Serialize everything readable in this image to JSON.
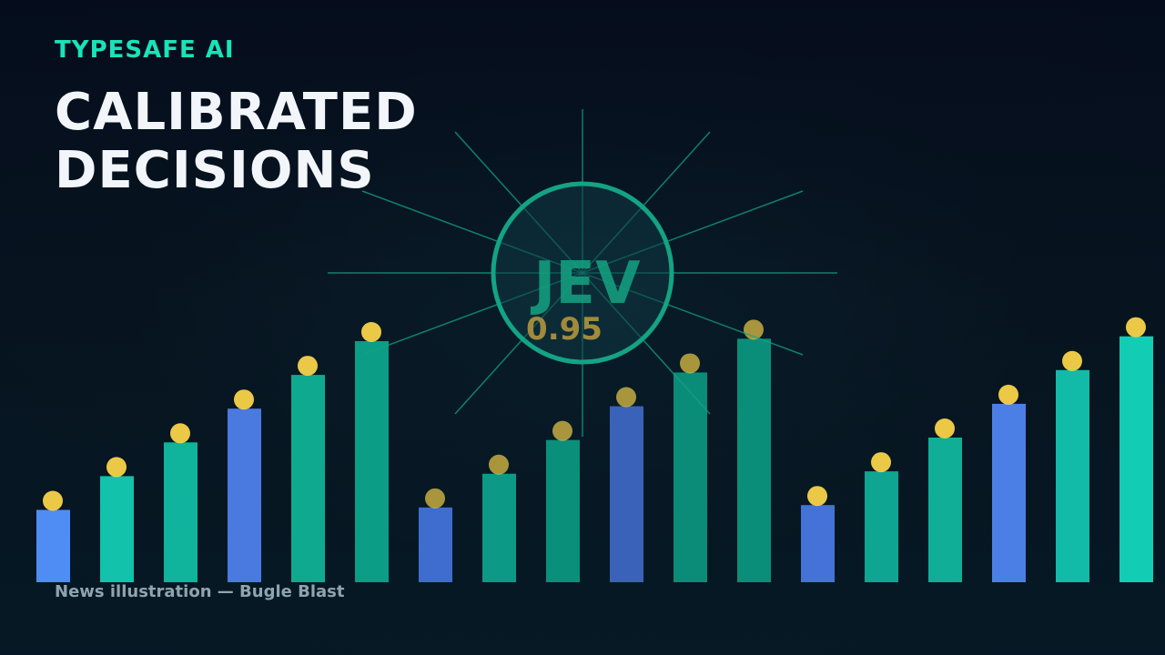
{
  "brand": "TYPESAFE AI",
  "headline": {
    "line1": "CALIBRATED",
    "line2": "DECISIONS"
  },
  "badge": {
    "label": "JEV",
    "value": "0.95"
  },
  "caption": "News illustration — Bugle Blast",
  "bars": [
    {
      "level": 0.3,
      "color": "#4f8df5"
    },
    {
      "level": 0.44,
      "color": "#12c2aa"
    },
    {
      "level": 0.58,
      "color": "#10b39c"
    },
    {
      "level": 0.72,
      "color": "#4a7ae0"
    },
    {
      "level": 0.86,
      "color": "#0fa98f"
    },
    {
      "level": 1.0,
      "color": "#0b9d86"
    },
    {
      "level": 0.31,
      "color": "#3f6ccf"
    },
    {
      "level": 0.45,
      "color": "#0c9a86"
    },
    {
      "level": 0.59,
      "color": "#0a8f7b"
    },
    {
      "level": 0.73,
      "color": "#3a62b8"
    },
    {
      "level": 0.87,
      "color": "#0a8c79"
    },
    {
      "level": 1.01,
      "color": "#0a8e7a"
    },
    {
      "level": 0.32,
      "color": "#4572d6"
    },
    {
      "level": 0.46,
      "color": "#0ea593"
    },
    {
      "level": 0.6,
      "color": "#10ad97"
    },
    {
      "level": 0.74,
      "color": "#4b7fe6"
    },
    {
      "level": 0.88,
      "color": "#12bba7"
    },
    {
      "level": 1.02,
      "color": "#12cdb4"
    }
  ],
  "colors": {
    "accent": "#19e3b8",
    "ring": "#14a383",
    "dot": "#ffd84a",
    "value": "#a08a3c"
  }
}
